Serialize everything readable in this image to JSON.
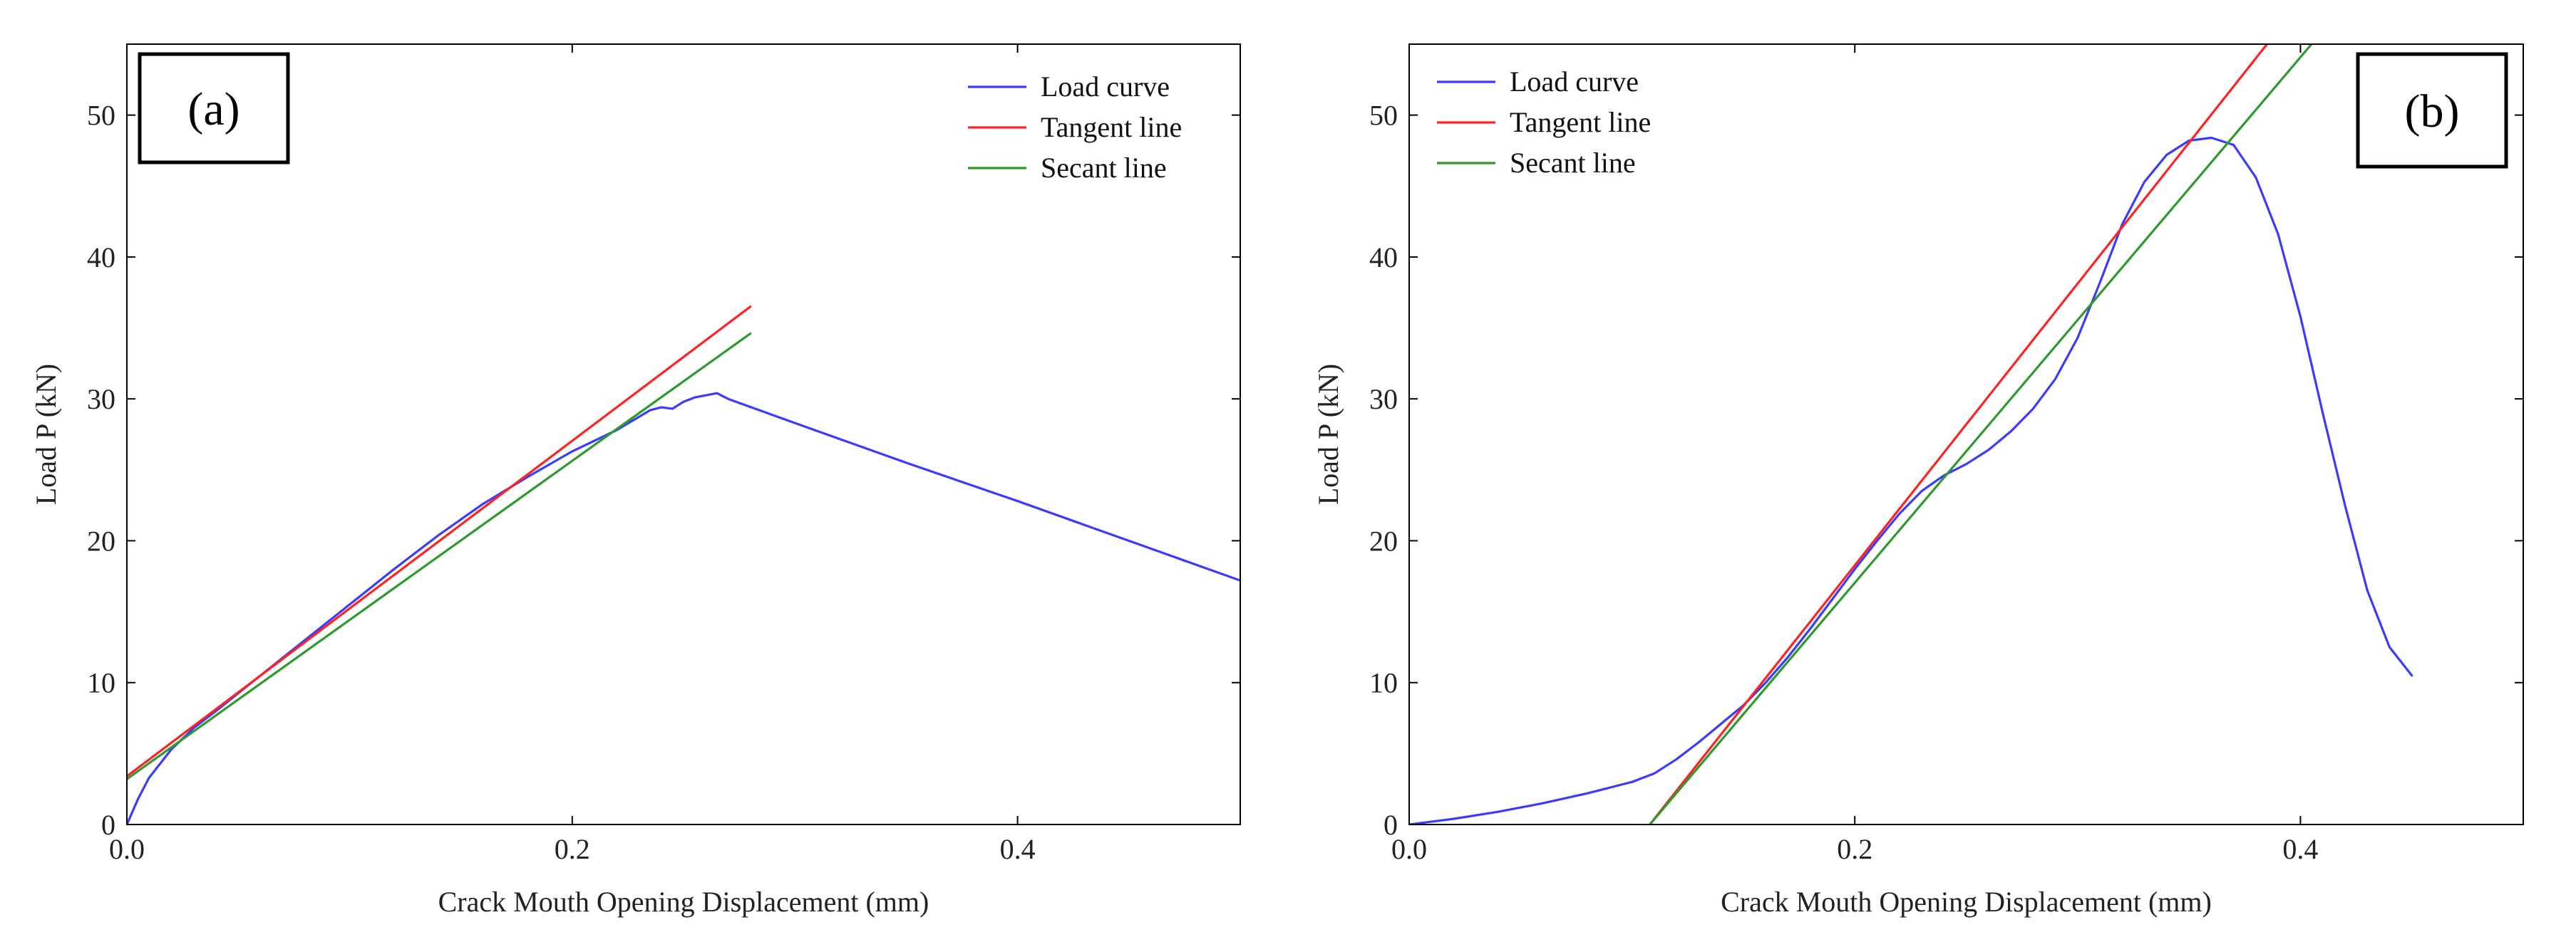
{
  "chart_data": [
    {
      "type": "line",
      "panel_label": "(a)",
      "xlabel": "Crack Mouth Opening Displacement (mm)",
      "ylabel": "Load P (kN)",
      "xlim": [
        0,
        0.5
      ],
      "ylim": [
        0,
        55
      ],
      "xticks": [
        0.0,
        0.2,
        0.4
      ],
      "xtick_labels": [
        "0.0",
        "0.2",
        "0.4"
      ],
      "yticks": [
        0,
        10,
        20,
        30,
        40,
        50
      ],
      "ytick_labels": [
        "0",
        "10",
        "20",
        "30",
        "40",
        "50"
      ],
      "legend_position": "top-right",
      "series": [
        {
          "name": "Load curve",
          "color": "#3b3bff",
          "x": [
            0,
            0.005,
            0.01,
            0.02,
            0.03,
            0.04,
            0.06,
            0.08,
            0.1,
            0.12,
            0.14,
            0.16,
            0.18,
            0.2,
            0.22,
            0.235,
            0.24,
            0.245,
            0.25,
            0.255,
            0.265,
            0.27,
            0.3,
            0.35,
            0.4,
            0.45,
            0.5
          ],
          "y": [
            0,
            1.8,
            3.3,
            5.3,
            6.8,
            8.0,
            10.5,
            13.0,
            15.5,
            18.0,
            20.4,
            22.6,
            24.5,
            26.3,
            27.8,
            29.2,
            29.4,
            29.3,
            29.8,
            30.1,
            30.4,
            30.0,
            28.3,
            25.5,
            22.8,
            20.0,
            17.2
          ]
        },
        {
          "name": "Tangent line",
          "color": "#ff2222",
          "x": [
            0,
            0.28
          ],
          "y": [
            3.4,
            36.5
          ]
        },
        {
          "name": "Secant line",
          "color": "#2e9a2e",
          "x": [
            0,
            0.28
          ],
          "y": [
            3.2,
            34.6
          ]
        }
      ]
    },
    {
      "type": "line",
      "panel_label": "(b)",
      "xlabel": "Crack Mouth Opening Displacement (mm)",
      "ylabel": "Load P (kN)",
      "xlim": [
        0,
        0.5
      ],
      "ylim": [
        0,
        55
      ],
      "xticks": [
        0.0,
        0.2,
        0.4
      ],
      "xtick_labels": [
        "0.0",
        "0.2",
        "0.4"
      ],
      "yticks": [
        0,
        10,
        20,
        30,
        40,
        50
      ],
      "ytick_labels": [
        "0",
        "10",
        "20",
        "30",
        "40",
        "50"
      ],
      "legend_position": "top-left",
      "series": [
        {
          "name": "Load curve",
          "color": "#3b3bff",
          "x": [
            0,
            0.02,
            0.04,
            0.06,
            0.08,
            0.1,
            0.11,
            0.12,
            0.13,
            0.14,
            0.15,
            0.16,
            0.17,
            0.18,
            0.19,
            0.2,
            0.21,
            0.22,
            0.23,
            0.24,
            0.25,
            0.26,
            0.27,
            0.28,
            0.29,
            0.3,
            0.31,
            0.32,
            0.33,
            0.34,
            0.35,
            0.36,
            0.37,
            0.38,
            0.39,
            0.4,
            0.41,
            0.42,
            0.43,
            0.44,
            0.45
          ],
          "y": [
            0,
            0.4,
            0.9,
            1.5,
            2.2,
            3.0,
            3.6,
            4.6,
            5.8,
            7.1,
            8.4,
            10.0,
            11.8,
            13.8,
            15.9,
            18.0,
            20.0,
            21.9,
            23.5,
            24.6,
            25.4,
            26.4,
            27.7,
            29.3,
            31.4,
            34.3,
            38.2,
            42.3,
            45.3,
            47.2,
            48.2,
            48.4,
            47.9,
            45.6,
            41.6,
            35.8,
            29.0,
            22.5,
            16.5,
            12.5,
            10.5
          ]
        },
        {
          "name": "Tangent line",
          "color": "#ff2222",
          "x": [
            0.108,
            0.385
          ],
          "y": [
            0,
            55
          ]
        },
        {
          "name": "Secant line",
          "color": "#2e9a2e",
          "x": [
            0.108,
            0.405
          ],
          "y": [
            0,
            55
          ]
        }
      ]
    }
  ]
}
